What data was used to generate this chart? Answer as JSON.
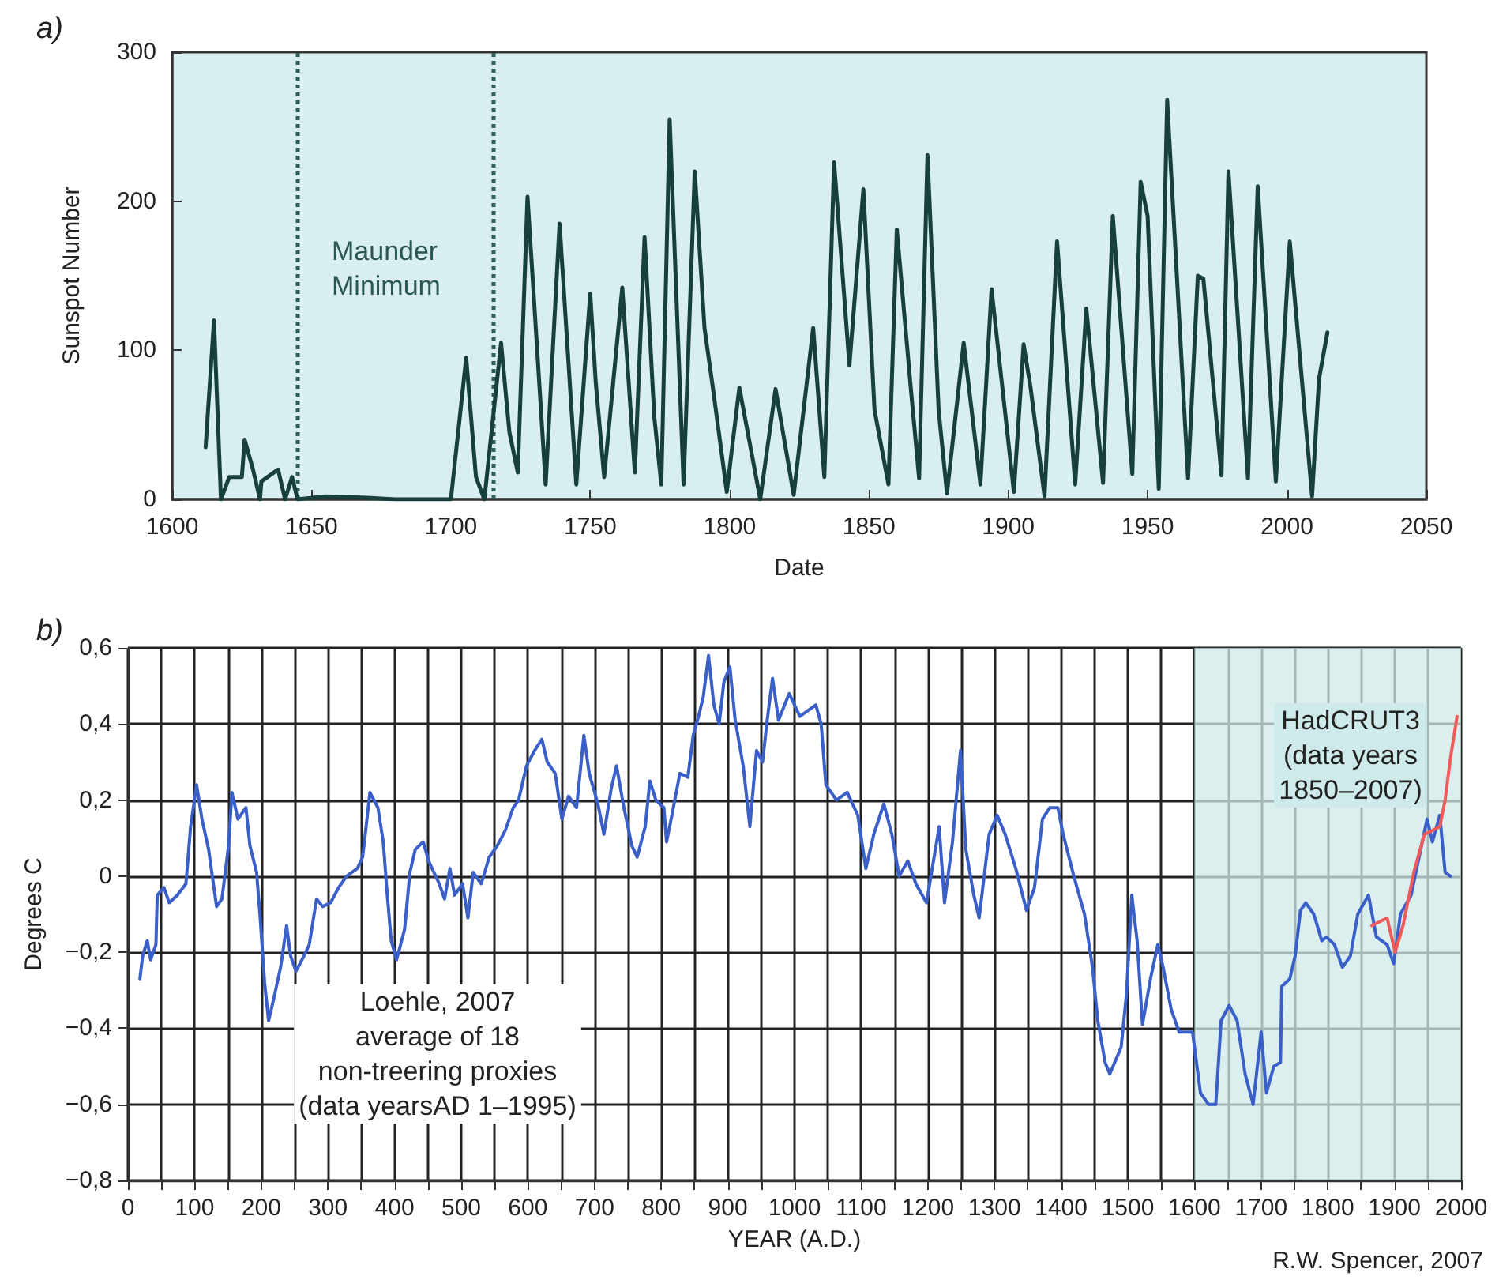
{
  "chart_data": [
    {
      "type": "line",
      "title": "a)",
      "xlabel": "Date",
      "ylabel": "Sunspot Number",
      "series": [
        {
          "color": "#173f3c",
          "x": [
            1612,
            1615,
            1617.5,
            1620.5,
            1625,
            1626,
            1629,
            1631.5,
            1632,
            1638,
            1640.5,
            1643,
            1645,
            1655,
            1670,
            1680,
            1700,
            1705.5,
            1709,
            1712,
            1718,
            1721,
            1724,
            1727.5,
            1734,
            1739,
            1745,
            1750,
            1752,
            1755,
            1761.5,
            1766,
            1769.5,
            1773,
            1775.5,
            1778.5,
            1783.5,
            1787.5,
            1791,
            1794,
            1799,
            1803.5,
            1811,
            1816.5,
            1823,
            1830,
            1834,
            1837.5,
            1843,
            1848,
            1852,
            1857,
            1860,
            1865,
            1868,
            1871,
            1875,
            1878,
            1884,
            1890,
            1894,
            1902,
            1905.5,
            1908,
            1913,
            1917.5,
            1924,
            1928,
            1934,
            1937.5,
            1944.5,
            1947.5,
            1950,
            1954,
            1957,
            1964.5,
            1968,
            1970,
            1976.5,
            1979,
            1986,
            1989.5,
            1996,
            2001,
            2009,
            2011.5,
            2014.5
          ],
          "values": [
            35,
            120,
            0,
            15,
            15,
            40,
            20,
            0,
            12,
            20,
            0,
            15,
            0,
            2,
            1,
            0,
            0,
            95,
            15,
            0,
            105,
            45,
            18,
            203,
            10,
            185,
            10,
            138,
            78,
            15,
            142,
            18,
            176,
            55,
            10,
            255,
            10,
            220,
            115,
            75,
            5,
            75,
            0,
            74,
            3,
            115,
            15,
            226,
            90,
            208,
            60,
            10,
            181,
            75,
            14,
            231,
            60,
            4,
            105,
            10,
            141,
            5,
            104,
            75,
            2,
            173,
            10,
            128,
            11,
            190,
            17,
            213,
            190,
            7,
            268,
            14,
            150,
            148,
            16,
            220,
            14,
            210,
            12,
            173,
            2,
            81,
            112
          ]
        }
      ],
      "xlim": [
        1600,
        2050
      ],
      "xticks": [
        1600,
        1650,
        1700,
        1750,
        1800,
        1850,
        1900,
        1950,
        2000,
        2050
      ],
      "ylim": [
        0,
        300
      ],
      "yticks": [
        0,
        100,
        200,
        300
      ],
      "ref_lines": [
        {
          "axis": "x",
          "value": 1645,
          "line_style": "dotted",
          "color": "#2f5c58"
        },
        {
          "axis": "x",
          "value": 1715,
          "line_style": "dotted",
          "color": "#2f5c58"
        }
      ],
      "annotations": [
        "Maunder\nMinimum"
      ],
      "grid": false,
      "marker": "none",
      "line_style": "solid"
    },
    {
      "type": "line",
      "title": "b)",
      "xlabel": "YEAR (A.D.)",
      "ylabel": "Degrees C",
      "series": [
        {
          "color": "#3a5fc8",
          "x": [
            18,
            22,
            29,
            34,
            42,
            44,
            54,
            62,
            74,
            87,
            94,
            103,
            111,
            121,
            133,
            141,
            151,
            156,
            165,
            177,
            183,
            193,
            198,
            205,
            211,
            219,
            229,
            238,
            244,
            252,
            264,
            272,
            283,
            292,
            304,
            316,
            328,
            344,
            352,
            356,
            363,
            375,
            383,
            389,
            395,
            403,
            415,
            423,
            431,
            443,
            451,
            467,
            475,
            483,
            490,
            502,
            510,
            518,
            530,
            542,
            554,
            566,
            578,
            586,
            598,
            610,
            621,
            629,
            641,
            651,
            661,
            673,
            684,
            692,
            705,
            714,
            725,
            733,
            744,
            756,
            764,
            776,
            783,
            792,
            804,
            808,
            816,
            828,
            840,
            848,
            856,
            863,
            871,
            879,
            887,
            894,
            903,
            911,
            923,
            933,
            943,
            952,
            959,
            967,
            976,
            992,
            1008,
            1032,
            1040,
            1047,
            1063,
            1079,
            1095,
            1107,
            1119,
            1134,
            1146,
            1157,
            1170,
            1182,
            1198,
            1217,
            1225,
            1237,
            1249,
            1257,
            1269,
            1277,
            1292,
            1304,
            1316,
            1332,
            1348,
            1360,
            1372,
            1383,
            1395,
            1403,
            1419,
            1435,
            1447,
            1455,
            1466,
            1473,
            1490,
            1498,
            1506,
            1514,
            1522,
            1534,
            1545,
            1553,
            1565,
            1577,
            1597,
            1609,
            1621,
            1632,
            1640,
            1652,
            1664,
            1676,
            1688,
            1700,
            1708,
            1719,
            1729,
            1731,
            1743,
            1751,
            1759,
            1767,
            1779,
            1791,
            1798,
            1810,
            1822,
            1834,
            1845,
            1861,
            1873,
            1889,
            1899,
            1909,
            1925,
            1937,
            1949,
            1957,
            1968,
            1976,
            1984
          ],
          "values": [
            -0.27,
            -0.21,
            -0.17,
            -0.22,
            -0.18,
            -0.05,
            -0.03,
            -0.07,
            -0.05,
            -0.02,
            0.13,
            0.24,
            0.15,
            0.07,
            -0.08,
            -0.06,
            0.08,
            0.22,
            0.15,
            0.18,
            0.08,
            0.01,
            -0.1,
            -0.28,
            -0.38,
            -0.32,
            -0.24,
            -0.13,
            -0.21,
            -0.25,
            -0.21,
            -0.18,
            -0.06,
            -0.08,
            -0.07,
            -0.03,
            0,
            0.02,
            0.05,
            0.11,
            0.22,
            0.18,
            0.09,
            -0.05,
            -0.17,
            -0.22,
            -0.14,
            0.01,
            0.07,
            0.09,
            0.04,
            -0.02,
            -0.06,
            0.02,
            -0.05,
            -0.02,
            -0.11,
            0.01,
            -0.02,
            0.05,
            0.08,
            0.12,
            0.18,
            0.2,
            0.29,
            0.33,
            0.36,
            0.3,
            0.27,
            0.15,
            0.21,
            0.18,
            0.37,
            0.27,
            0.19,
            0.11,
            0.23,
            0.29,
            0.18,
            0.08,
            0.05,
            0.13,
            0.25,
            0.2,
            0.18,
            0.09,
            0.16,
            0.27,
            0.26,
            0.37,
            0.42,
            0.47,
            0.58,
            0.45,
            0.4,
            0.51,
            0.55,
            0.41,
            0.29,
            0.13,
            0.33,
            0.3,
            0.41,
            0.52,
            0.41,
            0.48,
            0.42,
            0.45,
            0.4,
            0.24,
            0.2,
            0.22,
            0.16,
            0.02,
            0.11,
            0.19,
            0.11,
            0,
            0.04,
            -0.02,
            -0.07,
            0.13,
            -0.07,
            0.09,
            0.33,
            0.07,
            -0.05,
            -0.11,
            0.11,
            0.16,
            0.11,
            0.02,
            -0.09,
            -0.03,
            0.15,
            0.18,
            0.18,
            0.11,
            0,
            -0.1,
            -0.24,
            -0.38,
            -0.49,
            -0.52,
            -0.45,
            -0.31,
            -0.05,
            -0.17,
            -0.39,
            -0.27,
            -0.18,
            -0.24,
            -0.35,
            -0.41,
            -0.41,
            -0.57,
            -0.6,
            -0.6,
            -0.38,
            -0.34,
            -0.38,
            -0.52,
            -0.6,
            -0.41,
            -0.57,
            -0.5,
            -0.49,
            -0.29,
            -0.27,
            -0.21,
            -0.09,
            -0.07,
            -0.1,
            -0.17,
            -0.16,
            -0.18,
            -0.24,
            -0.21,
            -0.1,
            -0.05,
            -0.16,
            -0.18,
            -0.23,
            -0.1,
            -0.05,
            0.05,
            0.15,
            0.09,
            0.16,
            0.01,
            0
          ]
        },
        {
          "color": "#f05a5a",
          "x": [
            1866,
            1889,
            1901,
            1913,
            1929,
            1945,
            1957,
            1968,
            1976,
            1984,
            1994
          ],
          "values": [
            -0.13,
            -0.11,
            -0.2,
            -0.13,
            0.01,
            0.11,
            0.12,
            0.13,
            0.2,
            0.31,
            0.42
          ]
        }
      ],
      "xlim": [
        0,
        2000
      ],
      "xticks": [
        0,
        {
          "value": 50,
          "label": null
        },
        100,
        {
          "value": 150,
          "label": null
        },
        200,
        {
          "value": 250,
          "label": null
        },
        300,
        {
          "value": 350,
          "label": null
        },
        400,
        {
          "value": 450,
          "label": null
        },
        500,
        {
          "value": 550,
          "label": null
        },
        600,
        {
          "value": 650,
          "label": null
        },
        700,
        {
          "value": 750,
          "label": null
        },
        800,
        {
          "value": 850,
          "label": null
        },
        900,
        {
          "value": 950,
          "label": null
        },
        1000,
        {
          "value": 1050,
          "label": null
        },
        1100,
        {
          "value": 1150,
          "label": null
        },
        1200,
        {
          "value": 1250,
          "label": null
        },
        1300,
        {
          "value": 1350,
          "label": null
        },
        1400,
        {
          "value": 1450,
          "label": null
        },
        1500,
        {
          "value": 1550,
          "label": null
        },
        1600,
        {
          "value": 1650,
          "label": null
        },
        1700,
        {
          "value": 1750,
          "label": null
        },
        1800,
        {
          "value": 1850,
          "label": null
        },
        1900,
        {
          "value": 1950,
          "label": null
        },
        2000
      ],
      "ylim": [
        -0.8,
        0.6
      ],
      "yticks": [
        {
          "value": -0.8,
          "label": "−0,8"
        },
        {
          "value": -0.6,
          "label": "−0,6"
        },
        {
          "value": -0.4,
          "label": "−0,4"
        },
        {
          "value": -0.2,
          "label": "−0,2"
        },
        0,
        {
          "value": 0.2,
          "label": "0,2"
        },
        {
          "value": 0.4,
          "label": "0,4"
        },
        {
          "value": 0.6,
          "label": "0,6"
        }
      ],
      "bands": [
        {
          "axis": "x",
          "from": 1600,
          "to": 2000,
          "color": "#cfeaea"
        }
      ],
      "annotations": [
        "Loehle, 2007\naverage of 18\nnon-treering proxies\n(data yearsAD 1–1995)",
        "HadCRUT3\n(data years\n1850–2007)",
        "R.W. Spencer, 2007"
      ],
      "grid": true,
      "marker": "none",
      "line_style": "solid"
    }
  ]
}
